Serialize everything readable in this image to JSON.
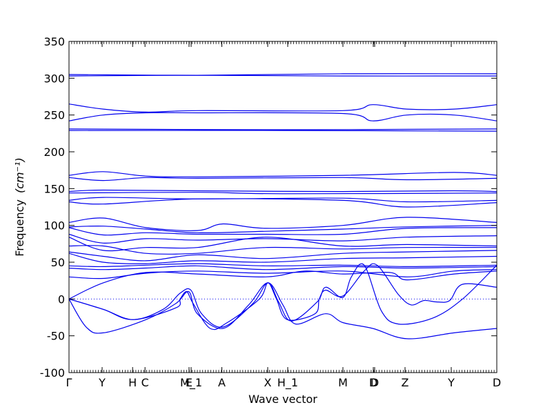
{
  "chart_data": {
    "type": "line",
    "xlabel": "Wave vector",
    "ylabel": "Frequency",
    "ylabel_unit": "(cm⁻¹)",
    "ylim": [
      -100,
      350
    ],
    "yticks": [
      -100,
      -50,
      0,
      50,
      100,
      150,
      200,
      250,
      300,
      350
    ],
    "xlim": [
      0,
      1
    ],
    "grid": false,
    "line_color": "#0000ee",
    "zero_line_color": "#0000ee",
    "high_symmetry_points": [
      {
        "label": "Γ",
        "x": 0.0
      },
      {
        "label": "Y",
        "x": 0.0774
      },
      {
        "label": "H",
        "x": 0.1487
      },
      {
        "label": "C",
        "x": 0.1777
      },
      {
        "label": "E",
        "x": 0.2806
      },
      {
        "label": "M_1",
        "x": 0.2855
      },
      {
        "label": "A",
        "x": 0.3573
      },
      {
        "label": "X",
        "x": 0.4645
      },
      {
        "label": "H_1",
        "x": 0.5113
      },
      {
        "label": "M",
        "x": 0.6403
      },
      {
        "label": "D",
        "x": 0.7113
      },
      {
        "label": "D",
        "x": 0.7145
      },
      {
        "label": "Z",
        "x": 0.7855
      },
      {
        "label": "Y",
        "x": 0.8935
      },
      {
        "label": "D",
        "x": 1.0
      }
    ],
    "series": [
      {
        "values": [
          [
            0,
            305
          ],
          [
            0.3,
            304
          ],
          [
            0.64,
            306
          ],
          [
            1,
            306
          ]
        ]
      },
      {
        "values": [
          [
            0,
            303
          ],
          [
            0.3,
            304
          ],
          [
            0.64,
            303
          ],
          [
            1,
            303
          ]
        ]
      },
      {
        "values": [
          [
            0,
            265
          ],
          [
            0.08,
            258
          ],
          [
            0.18,
            254
          ],
          [
            0.3,
            256
          ],
          [
            0.64,
            256
          ],
          [
            0.71,
            264
          ],
          [
            0.79,
            258
          ],
          [
            0.9,
            258
          ],
          [
            1,
            264
          ]
        ]
      },
      {
        "values": [
          [
            0,
            242
          ],
          [
            0.08,
            250
          ],
          [
            0.18,
            253
          ],
          [
            0.3,
            253
          ],
          [
            0.64,
            252
          ],
          [
            0.71,
            242
          ],
          [
            0.79,
            250
          ],
          [
            0.9,
            250
          ],
          [
            1,
            242
          ]
        ]
      },
      {
        "values": [
          [
            0,
            231
          ],
          [
            0.5,
            230
          ],
          [
            1,
            231
          ]
        ]
      },
      {
        "values": [
          [
            0,
            229
          ],
          [
            0.5,
            229
          ],
          [
            1,
            228
          ]
        ]
      },
      {
        "values": [
          [
            0,
            168
          ],
          [
            0.08,
            173
          ],
          [
            0.18,
            167
          ],
          [
            0.3,
            166
          ],
          [
            0.64,
            168
          ],
          [
            0.9,
            172
          ],
          [
            1,
            168
          ]
        ]
      },
      {
        "values": [
          [
            0,
            165
          ],
          [
            0.08,
            161
          ],
          [
            0.18,
            165
          ],
          [
            0.3,
            164
          ],
          [
            0.64,
            165
          ],
          [
            0.79,
            162
          ],
          [
            1,
            164
          ]
        ]
      },
      {
        "values": [
          [
            0,
            146
          ],
          [
            0.08,
            148
          ],
          [
            0.3,
            147
          ],
          [
            0.64,
            146
          ],
          [
            0.9,
            147
          ],
          [
            1,
            146
          ]
        ]
      },
      {
        "values": [
          [
            0,
            144
          ],
          [
            0.3,
            145
          ],
          [
            0.5,
            143
          ],
          [
            1,
            144
          ]
        ]
      },
      {
        "values": [
          [
            0,
            134
          ],
          [
            0.08,
            138
          ],
          [
            0.3,
            136
          ],
          [
            0.64,
            137
          ],
          [
            0.79,
            132
          ],
          [
            1,
            134
          ]
        ]
      },
      {
        "values": [
          [
            0,
            132
          ],
          [
            0.08,
            129
          ],
          [
            0.3,
            136
          ],
          [
            0.64,
            134
          ],
          [
            0.79,
            125
          ],
          [
            1,
            131
          ]
        ]
      },
      {
        "values": [
          [
            0,
            104
          ],
          [
            0.08,
            110
          ],
          [
            0.18,
            97
          ],
          [
            0.3,
            93
          ],
          [
            0.36,
            102
          ],
          [
            0.46,
            96
          ],
          [
            0.64,
            100
          ],
          [
            0.79,
            111
          ],
          [
            1,
            104
          ]
        ]
      },
      {
        "values": [
          [
            0,
            98
          ],
          [
            0.08,
            99
          ],
          [
            0.18,
            95
          ],
          [
            0.3,
            90
          ],
          [
            0.46,
            92
          ],
          [
            0.64,
            95
          ],
          [
            0.79,
            98
          ],
          [
            1,
            100
          ]
        ]
      },
      {
        "values": [
          [
            0,
            97
          ],
          [
            0.08,
            87
          ],
          [
            0.18,
            90
          ],
          [
            0.3,
            88
          ],
          [
            0.46,
            88
          ],
          [
            0.64,
            88
          ],
          [
            0.79,
            96
          ],
          [
            1,
            97
          ]
        ]
      },
      {
        "values": [
          [
            0,
            88
          ],
          [
            0.08,
            76
          ],
          [
            0.18,
            82
          ],
          [
            0.3,
            80
          ],
          [
            0.46,
            82
          ],
          [
            0.64,
            79
          ],
          [
            0.79,
            84
          ],
          [
            1,
            86
          ]
        ]
      },
      {
        "values": [
          [
            0,
            84
          ],
          [
            0.08,
            66
          ],
          [
            0.18,
            70
          ],
          [
            0.3,
            70
          ],
          [
            0.46,
            84
          ],
          [
            0.64,
            72
          ],
          [
            0.79,
            74
          ],
          [
            1,
            72
          ]
        ]
      },
      {
        "values": [
          [
            0,
            72
          ],
          [
            0.08,
            72
          ],
          [
            0.18,
            62
          ],
          [
            0.3,
            62
          ],
          [
            0.46,
            70
          ],
          [
            0.64,
            68
          ],
          [
            0.79,
            70
          ],
          [
            1,
            70
          ]
        ]
      },
      {
        "values": [
          [
            0,
            64
          ],
          [
            0.08,
            58
          ],
          [
            0.18,
            52
          ],
          [
            0.3,
            60
          ],
          [
            0.46,
            55
          ],
          [
            0.64,
            62
          ],
          [
            0.79,
            64
          ],
          [
            1,
            66
          ]
        ]
      },
      {
        "values": [
          [
            0,
            62
          ],
          [
            0.08,
            50
          ],
          [
            0.18,
            48
          ],
          [
            0.3,
            52
          ],
          [
            0.46,
            50
          ],
          [
            0.64,
            55
          ],
          [
            0.79,
            56
          ],
          [
            1,
            58
          ]
        ]
      },
      {
        "values": [
          [
            0,
            45
          ],
          [
            0.08,
            44
          ],
          [
            0.18,
            46
          ],
          [
            0.3,
            48
          ],
          [
            0.46,
            45
          ],
          [
            0.64,
            46
          ],
          [
            0.79,
            44
          ],
          [
            1,
            46
          ]
        ]
      },
      {
        "values": [
          [
            0,
            42
          ],
          [
            0.08,
            40
          ],
          [
            0.18,
            42
          ],
          [
            0.3,
            45
          ],
          [
            0.46,
            40
          ],
          [
            0.64,
            44
          ],
          [
            0.79,
            42
          ],
          [
            1,
            44
          ]
        ]
      },
      {
        "values": [
          [
            0,
            30
          ],
          [
            0.08,
            28
          ],
          [
            0.18,
            35
          ],
          [
            0.3,
            38
          ],
          [
            0.46,
            35
          ],
          [
            0.64,
            38
          ],
          [
            0.79,
            30
          ],
          [
            0.9,
            38
          ],
          [
            1,
            40
          ]
        ]
      },
      {
        "values": [
          [
            0,
            0
          ],
          [
            0.08,
            22
          ],
          [
            0.18,
            36
          ],
          [
            0.3,
            34
          ],
          [
            0.46,
            30
          ],
          [
            0.55,
            38
          ],
          [
            0.64,
            34
          ],
          [
            0.75,
            36
          ],
          [
            0.79,
            26
          ],
          [
            0.9,
            34
          ],
          [
            1,
            38
          ]
        ]
      },
      {
        "values": [
          [
            0,
            0
          ],
          [
            0.08,
            -14
          ],
          [
            0.15,
            -28
          ],
          [
            0.25,
            -12
          ],
          [
            0.26,
            0
          ],
          [
            0.275,
            10
          ],
          [
            0.29,
            -6
          ],
          [
            0.33,
            -40
          ],
          [
            0.37,
            -32
          ],
          [
            0.445,
            0
          ],
          [
            0.465,
            22
          ],
          [
            0.485,
            0
          ],
          [
            0.51,
            -28
          ],
          [
            0.575,
            -20
          ],
          [
            0.585,
            0
          ],
          [
            0.6,
            12
          ],
          [
            0.64,
            4
          ],
          [
            0.69,
            38
          ],
          [
            0.72,
            46
          ],
          [
            0.77,
            6
          ],
          [
            0.8,
            -8
          ],
          [
            0.83,
            -2
          ],
          [
            0.86,
            -4
          ],
          [
            0.89,
            -2
          ],
          [
            0.92,
            20
          ],
          [
            1,
            16
          ]
        ]
      },
      {
        "values": [
          [
            0,
            0
          ],
          [
            0.04,
            -38
          ],
          [
            0.08,
            -46
          ],
          [
            0.18,
            -28
          ],
          [
            0.25,
            -6
          ],
          [
            0.28,
            10
          ],
          [
            0.3,
            -20
          ],
          [
            0.36,
            -40
          ],
          [
            0.42,
            -8
          ],
          [
            0.465,
            22
          ],
          [
            0.5,
            -8
          ],
          [
            0.53,
            -34
          ],
          [
            0.6,
            -20
          ],
          [
            0.64,
            -32
          ],
          [
            0.71,
            -40
          ],
          [
            0.79,
            -54
          ],
          [
            0.9,
            -46
          ],
          [
            1,
            -40
          ]
        ]
      },
      {
        "values": [
          [
            0,
            0
          ],
          [
            0.08,
            -14
          ],
          [
            0.15,
            -28
          ],
          [
            0.22,
            -14
          ],
          [
            0.26,
            8
          ],
          [
            0.285,
            12
          ],
          [
            0.31,
            -20
          ],
          [
            0.36,
            -38
          ],
          [
            0.43,
            -6
          ],
          [
            0.465,
            22
          ],
          [
            0.49,
            -4
          ],
          [
            0.52,
            -30
          ],
          [
            0.58,
            -4
          ],
          [
            0.6,
            16
          ],
          [
            0.64,
            2
          ],
          [
            0.66,
            30
          ],
          [
            0.69,
            46
          ],
          [
            0.73,
            -16
          ],
          [
            0.77,
            -34
          ],
          [
            0.85,
            -26
          ],
          [
            0.92,
            0
          ],
          [
            1,
            46
          ]
        ]
      }
    ]
  }
}
